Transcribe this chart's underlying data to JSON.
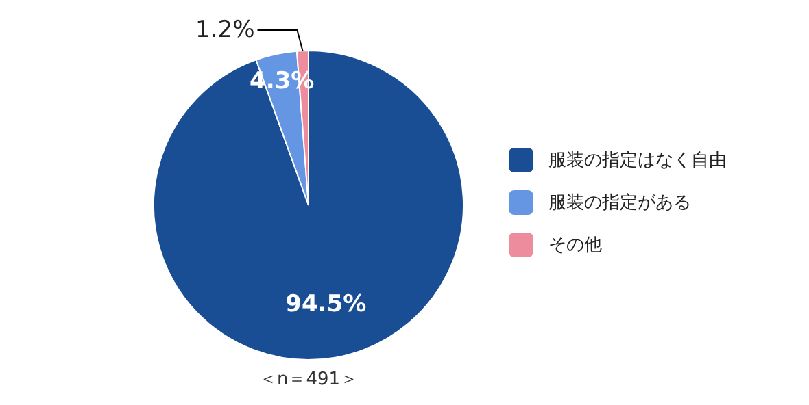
{
  "chart_data": {
    "type": "pie",
    "categories": [
      "服装の指定はなく自由",
      "服装の指定がある",
      "その他"
    ],
    "values": [
      94.5,
      4.3,
      1.2
    ],
    "colors": [
      "#1a4e94",
      "#6496e4",
      "#ec8c9c"
    ],
    "value_labels": [
      "94.5%",
      "4.3%",
      "1.2%"
    ],
    "legend": "right",
    "annotations": [
      "＜n＝491＞"
    ]
  }
}
